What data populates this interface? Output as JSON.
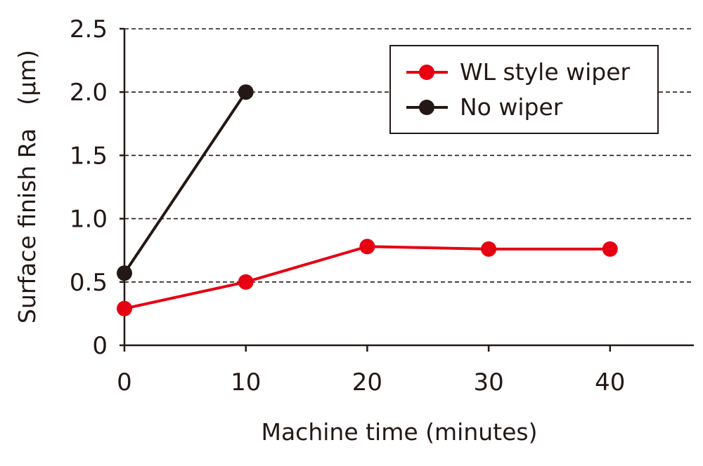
{
  "chart_data": {
    "type": "line",
    "xlabel": "Machine time (minutes)",
    "ylabel": "Surface finish Ra　(µm)",
    "xlim": [
      0,
      47
    ],
    "ylim": [
      0,
      2.5
    ],
    "x_ticks": [
      0,
      10,
      20,
      30,
      40
    ],
    "y_ticks": [
      0,
      0.5,
      1.0,
      1.5,
      2.0,
      2.5
    ],
    "x_tick_labels": [
      "0",
      "10",
      "20",
      "30",
      "40"
    ],
    "y_tick_labels": [
      "0",
      "0.5",
      "1.0",
      "1.5",
      "2.0",
      "2.5"
    ],
    "grid": "horizontal dashed",
    "legend_position": "top-right",
    "series": [
      {
        "name": "WL style wiper",
        "color": "#e60012",
        "x": [
          0,
          10,
          20,
          30,
          40
        ],
        "y": [
          0.29,
          0.5,
          0.78,
          0.76,
          0.76
        ]
      },
      {
        "name": "No wiper",
        "color": "#231815",
        "x": [
          0,
          10
        ],
        "y": [
          0.57,
          2.0
        ]
      }
    ]
  }
}
